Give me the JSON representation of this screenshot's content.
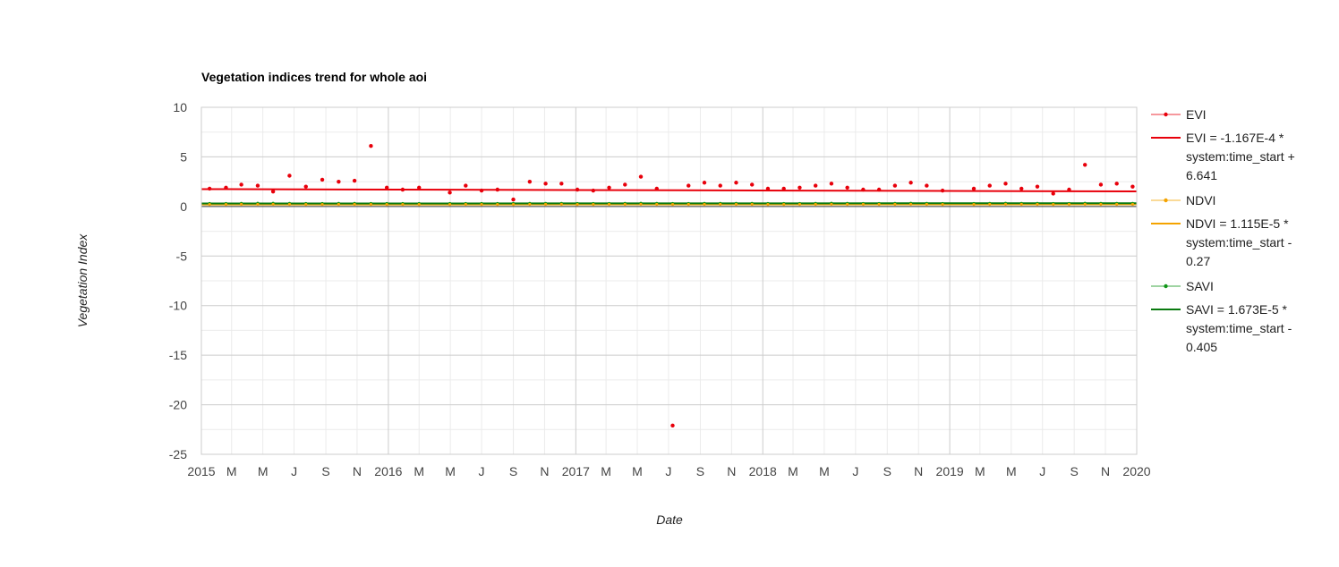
{
  "chart_data": {
    "type": "scatter",
    "title": "Vegetation indices trend for whole aoi",
    "xlabel": "Date",
    "ylabel": "Vegetation Index",
    "ylim": [
      -25,
      10
    ],
    "xlim": [
      "2015-01-01",
      "2020-01-01"
    ],
    "y_ticks": [
      {
        "value": 10,
        "label": "10"
      },
      {
        "value": 5,
        "label": "5"
      },
      {
        "value": 0,
        "label": "0"
      },
      {
        "value": -5,
        "label": "-5"
      },
      {
        "value": -10,
        "label": "-10"
      },
      {
        "value": -15,
        "label": "-15"
      },
      {
        "value": -20,
        "label": "-20"
      },
      {
        "value": -25,
        "label": "-25"
      }
    ],
    "x_ticks": [
      {
        "date": "2015-01-01",
        "label": "2015",
        "year": true
      },
      {
        "date": "2015-03-01",
        "label": "M"
      },
      {
        "date": "2015-05-01",
        "label": "M"
      },
      {
        "date": "2015-07-01",
        "label": "J"
      },
      {
        "date": "2015-09-01",
        "label": "S"
      },
      {
        "date": "2015-11-01",
        "label": "N"
      },
      {
        "date": "2016-01-01",
        "label": "2016",
        "year": true
      },
      {
        "date": "2016-03-01",
        "label": "M"
      },
      {
        "date": "2016-05-01",
        "label": "M"
      },
      {
        "date": "2016-07-01",
        "label": "J"
      },
      {
        "date": "2016-09-01",
        "label": "S"
      },
      {
        "date": "2016-11-01",
        "label": "N"
      },
      {
        "date": "2017-01-01",
        "label": "2017",
        "year": true
      },
      {
        "date": "2017-03-01",
        "label": "M"
      },
      {
        "date": "2017-05-01",
        "label": "M"
      },
      {
        "date": "2017-07-01",
        "label": "J"
      },
      {
        "date": "2017-09-01",
        "label": "S"
      },
      {
        "date": "2017-11-01",
        "label": "N"
      },
      {
        "date": "2018-01-01",
        "label": "2018",
        "year": true
      },
      {
        "date": "2018-03-01",
        "label": "M"
      },
      {
        "date": "2018-05-01",
        "label": "M"
      },
      {
        "date": "2018-07-01",
        "label": "J"
      },
      {
        "date": "2018-09-01",
        "label": "S"
      },
      {
        "date": "2018-11-01",
        "label": "N"
      },
      {
        "date": "2019-01-01",
        "label": "2019",
        "year": true
      },
      {
        "date": "2019-03-01",
        "label": "M"
      },
      {
        "date": "2019-05-01",
        "label": "M"
      },
      {
        "date": "2019-07-01",
        "label": "J"
      },
      {
        "date": "2019-09-01",
        "label": "S"
      },
      {
        "date": "2019-11-01",
        "label": "N"
      },
      {
        "date": "2020-01-01",
        "label": "2020",
        "year": true
      }
    ],
    "grid": true,
    "legend_position": "right",
    "series": [
      {
        "name": "EVI",
        "color": "#e8000b",
        "points": [
          [
            "2015-01-17",
            1.8
          ],
          [
            "2015-02-18",
            1.9
          ],
          [
            "2015-03-20",
            2.2
          ],
          [
            "2015-04-21",
            2.1
          ],
          [
            "2015-05-21",
            1.5
          ],
          [
            "2015-06-22",
            3.1
          ],
          [
            "2015-07-24",
            2.0
          ],
          [
            "2015-08-25",
            2.7
          ],
          [
            "2015-09-26",
            2.5
          ],
          [
            "2015-10-27",
            2.6
          ],
          [
            "2015-11-28",
            6.1
          ],
          [
            "2015-12-29",
            1.9
          ],
          [
            "2016-01-29",
            1.7
          ],
          [
            "2016-03-01",
            1.9
          ],
          [
            "2016-04-30",
            1.4
          ],
          [
            "2016-05-31",
            2.1
          ],
          [
            "2016-07-01",
            1.6
          ],
          [
            "2016-08-01",
            1.7
          ],
          [
            "2016-09-01",
            0.7
          ],
          [
            "2016-10-03",
            2.5
          ],
          [
            "2016-11-03",
            2.3
          ],
          [
            "2016-12-04",
            2.3
          ],
          [
            "2017-01-04",
            1.7
          ],
          [
            "2017-02-04",
            1.6
          ],
          [
            "2017-03-07",
            1.9
          ],
          [
            "2017-04-07",
            2.2
          ],
          [
            "2017-05-08",
            3.0
          ],
          [
            "2017-06-08",
            1.8
          ],
          [
            "2017-07-09",
            -22.1
          ],
          [
            "2017-08-09",
            2.1
          ],
          [
            "2017-09-09",
            2.4
          ],
          [
            "2017-10-10",
            2.1
          ],
          [
            "2017-11-10",
            2.4
          ],
          [
            "2017-12-11",
            2.2
          ],
          [
            "2018-01-11",
            1.8
          ],
          [
            "2018-02-11",
            1.8
          ],
          [
            "2018-03-14",
            1.9
          ],
          [
            "2018-04-14",
            2.1
          ],
          [
            "2018-05-15",
            2.3
          ],
          [
            "2018-06-15",
            1.9
          ],
          [
            "2018-07-16",
            1.7
          ],
          [
            "2018-08-16",
            1.7
          ],
          [
            "2018-09-16",
            2.1
          ],
          [
            "2018-10-17",
            2.4
          ],
          [
            "2018-11-17",
            2.1
          ],
          [
            "2018-12-18",
            1.6
          ],
          [
            "2019-02-17",
            1.8
          ],
          [
            "2019-03-20",
            2.1
          ],
          [
            "2019-04-20",
            2.3
          ],
          [
            "2019-05-21",
            1.8
          ],
          [
            "2019-06-21",
            2.0
          ],
          [
            "2019-07-22",
            1.3
          ],
          [
            "2019-08-22",
            1.7
          ],
          [
            "2019-09-22",
            4.2
          ],
          [
            "2019-10-23",
            2.2
          ],
          [
            "2019-11-23",
            2.3
          ],
          [
            "2019-12-24",
            2.0
          ]
        ]
      },
      {
        "name": "NDVI",
        "color": "#f4a300",
        "points": [
          [
            "2015-01-17",
            0.2
          ],
          [
            "2015-02-18",
            0.2
          ],
          [
            "2015-03-20",
            0.21
          ],
          [
            "2015-04-21",
            0.22
          ],
          [
            "2015-05-21",
            0.22
          ],
          [
            "2015-06-22",
            0.21
          ],
          [
            "2015-07-24",
            0.2
          ],
          [
            "2015-08-25",
            0.2
          ],
          [
            "2015-09-26",
            0.21
          ],
          [
            "2015-10-27",
            0.21
          ],
          [
            "2015-11-28",
            0.2
          ],
          [
            "2015-12-29",
            0.2
          ],
          [
            "2016-01-29",
            0.2
          ],
          [
            "2016-03-01",
            0.2
          ],
          [
            "2016-04-30",
            0.2
          ],
          [
            "2016-05-31",
            0.21
          ],
          [
            "2016-07-01",
            0.2
          ],
          [
            "2016-08-01",
            0.2
          ],
          [
            "2016-09-01",
            0.2
          ],
          [
            "2016-10-03",
            0.21
          ],
          [
            "2016-11-03",
            0.21
          ],
          [
            "2016-12-04",
            0.21
          ],
          [
            "2017-01-04",
            0.2
          ],
          [
            "2017-02-04",
            0.2
          ],
          [
            "2017-03-07",
            0.21
          ],
          [
            "2017-04-07",
            0.21
          ],
          [
            "2017-05-08",
            0.22
          ],
          [
            "2017-06-08",
            0.21
          ],
          [
            "2017-07-09",
            0.2
          ],
          [
            "2017-08-09",
            0.21
          ],
          [
            "2017-09-09",
            0.21
          ],
          [
            "2017-10-10",
            0.21
          ],
          [
            "2017-11-10",
            0.21
          ],
          [
            "2017-12-11",
            0.21
          ],
          [
            "2018-01-11",
            0.2
          ],
          [
            "2018-02-11",
            0.2
          ],
          [
            "2018-03-14",
            0.21
          ],
          [
            "2018-04-14",
            0.21
          ],
          [
            "2018-05-15",
            0.22
          ],
          [
            "2018-06-15",
            0.21
          ],
          [
            "2018-07-16",
            0.21
          ],
          [
            "2018-08-16",
            0.21
          ],
          [
            "2018-09-16",
            0.21
          ],
          [
            "2018-10-17",
            0.22
          ],
          [
            "2018-11-17",
            0.21
          ],
          [
            "2018-12-18",
            0.2
          ],
          [
            "2019-02-17",
            0.2
          ],
          [
            "2019-03-20",
            0.21
          ],
          [
            "2019-04-20",
            0.22
          ],
          [
            "2019-05-21",
            0.21
          ],
          [
            "2019-06-21",
            0.21
          ],
          [
            "2019-07-22",
            0.2
          ],
          [
            "2019-08-22",
            0.21
          ],
          [
            "2019-09-22",
            0.22
          ],
          [
            "2019-10-23",
            0.21
          ],
          [
            "2019-11-23",
            0.21
          ],
          [
            "2019-12-24",
            0.21
          ]
        ]
      },
      {
        "name": "SAVI",
        "color": "#109618",
        "points": [
          [
            "2015-01-17",
            0.3
          ],
          [
            "2015-02-18",
            0.3
          ],
          [
            "2015-03-20",
            0.32
          ],
          [
            "2015-04-21",
            0.33
          ],
          [
            "2015-05-21",
            0.33
          ],
          [
            "2015-06-22",
            0.32
          ],
          [
            "2015-07-24",
            0.3
          ],
          [
            "2015-08-25",
            0.31
          ],
          [
            "2015-09-26",
            0.32
          ],
          [
            "2015-10-27",
            0.32
          ],
          [
            "2015-11-28",
            0.3
          ],
          [
            "2015-12-29",
            0.3
          ],
          [
            "2016-01-29",
            0.3
          ],
          [
            "2016-03-01",
            0.3
          ],
          [
            "2016-04-30",
            0.3
          ],
          [
            "2016-05-31",
            0.31
          ],
          [
            "2016-07-01",
            0.3
          ],
          [
            "2016-08-01",
            0.3
          ],
          [
            "2016-09-01",
            0.3
          ],
          [
            "2016-10-03",
            0.32
          ],
          [
            "2016-11-03",
            0.32
          ],
          [
            "2016-12-04",
            0.32
          ],
          [
            "2017-01-04",
            0.3
          ],
          [
            "2017-02-04",
            0.3
          ],
          [
            "2017-03-07",
            0.31
          ],
          [
            "2017-04-07",
            0.32
          ],
          [
            "2017-05-08",
            0.33
          ],
          [
            "2017-06-08",
            0.32
          ],
          [
            "2017-07-09",
            0.3
          ],
          [
            "2017-08-09",
            0.31
          ],
          [
            "2017-09-09",
            0.32
          ],
          [
            "2017-10-10",
            0.32
          ],
          [
            "2017-11-10",
            0.32
          ],
          [
            "2017-12-11",
            0.32
          ],
          [
            "2018-01-11",
            0.3
          ],
          [
            "2018-02-11",
            0.3
          ],
          [
            "2018-03-14",
            0.31
          ],
          [
            "2018-04-14",
            0.32
          ],
          [
            "2018-05-15",
            0.33
          ],
          [
            "2018-06-15",
            0.32
          ],
          [
            "2018-07-16",
            0.31
          ],
          [
            "2018-08-16",
            0.31
          ],
          [
            "2018-09-16",
            0.32
          ],
          [
            "2018-10-17",
            0.33
          ],
          [
            "2018-11-17",
            0.32
          ],
          [
            "2018-12-18",
            0.3
          ],
          [
            "2019-02-17",
            0.3
          ],
          [
            "2019-03-20",
            0.32
          ],
          [
            "2019-04-20",
            0.33
          ],
          [
            "2019-05-21",
            0.32
          ],
          [
            "2019-06-21",
            0.32
          ],
          [
            "2019-07-22",
            0.3
          ],
          [
            "2019-08-22",
            0.31
          ],
          [
            "2019-09-22",
            0.33
          ],
          [
            "2019-10-23",
            0.32
          ],
          [
            "2019-11-23",
            0.32
          ],
          [
            "2019-12-24",
            0.32
          ]
        ]
      }
    ],
    "trendlines": [
      {
        "series": "EVI",
        "color": "#e8000b",
        "slope": -0.0001167,
        "intercept": 6.641,
        "x_variable": "system:time_start",
        "label_lines": [
          "EVI = -1.167E-4 *",
          "system:time_start +",
          "6.641"
        ],
        "start": [
          "2015-01-01",
          1.75
        ],
        "end": [
          "2020-01-01",
          1.52
        ]
      },
      {
        "series": "NDVI",
        "color": "#f4a300",
        "slope": 1.115e-05,
        "intercept": -0.27,
        "x_variable": "system:time_start",
        "label_lines": [
          "NDVI = 1.115E-5 *",
          "system:time_start -",
          "0.27"
        ],
        "start": [
          "2015-01-01",
          0.2
        ],
        "end": [
          "2020-01-01",
          0.22
        ]
      },
      {
        "series": "SAVI",
        "color": "#0a7a10",
        "slope": 1.673e-05,
        "intercept": -0.405,
        "x_variable": "system:time_start",
        "label_lines": [
          "SAVI = 1.673E-5 *",
          "system:time_start -",
          "0.405"
        ],
        "start": [
          "2015-01-01",
          0.3
        ],
        "end": [
          "2020-01-01",
          0.33
        ]
      }
    ]
  }
}
